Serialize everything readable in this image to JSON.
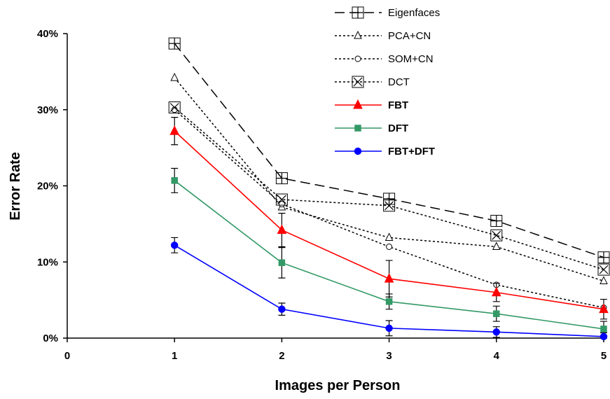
{
  "chart_data": {
    "type": "line",
    "xlabel": "Images per Person",
    "ylabel": "Error Rate",
    "xlim": [
      0,
      5
    ],
    "ylim": [
      0,
      40
    ],
    "x_ticks": [
      "0",
      "1",
      "2",
      "3",
      "4",
      "5"
    ],
    "y_ticks": [
      "0%",
      "10%",
      "20%",
      "30%",
      "40%"
    ],
    "grid": false,
    "legend_position": "top-right",
    "x": [
      1,
      2,
      3,
      4,
      5
    ],
    "series": [
      {
        "name": "Eigenfaces",
        "values": [
          38.7,
          21.0,
          18.3,
          15.4,
          10.6
        ],
        "color": "#000000",
        "dash": "long-dash",
        "marker": "boxed-plus",
        "bold": false
      },
      {
        "name": "PCA+CN",
        "values": [
          34.2,
          17.2,
          13.2,
          12.0,
          7.5
        ],
        "color": "#000000",
        "dash": "dotted",
        "marker": "open-triangle",
        "bold": false
      },
      {
        "name": "SOM+CN",
        "values": [
          30.0,
          17.6,
          12.0,
          7.0,
          4.0
        ],
        "color": "#000000",
        "dash": "dotted",
        "marker": "open-circle",
        "bold": false
      },
      {
        "name": "DCT",
        "values": [
          30.3,
          18.2,
          17.4,
          13.5,
          9.0
        ],
        "color": "#000000",
        "dash": "dotted",
        "marker": "boxed-x",
        "bold": false
      },
      {
        "name": "FBT",
        "values": [
          27.2,
          14.2,
          7.8,
          6.0,
          3.8
        ],
        "errors": [
          1.8,
          2.2,
          2.4,
          1.2,
          1.3
        ],
        "color": "#ff0000",
        "dash": "solid",
        "marker": "filled-triangle",
        "bold": true
      },
      {
        "name": "DFT",
        "values": [
          20.7,
          9.9,
          4.8,
          3.2,
          1.2
        ],
        "errors": [
          1.6,
          2.0,
          1.0,
          1.0,
          1.0
        ],
        "color": "#339966",
        "dash": "solid",
        "marker": "filled-square",
        "bold": true
      },
      {
        "name": "FBT+DFT",
        "values": [
          12.2,
          3.8,
          1.3,
          0.8,
          0.2
        ],
        "errors": [
          1.0,
          0.8,
          1.0,
          0.7,
          0.5
        ],
        "color": "#0000ff",
        "dash": "solid",
        "marker": "filled-circle",
        "bold": true
      }
    ]
  }
}
